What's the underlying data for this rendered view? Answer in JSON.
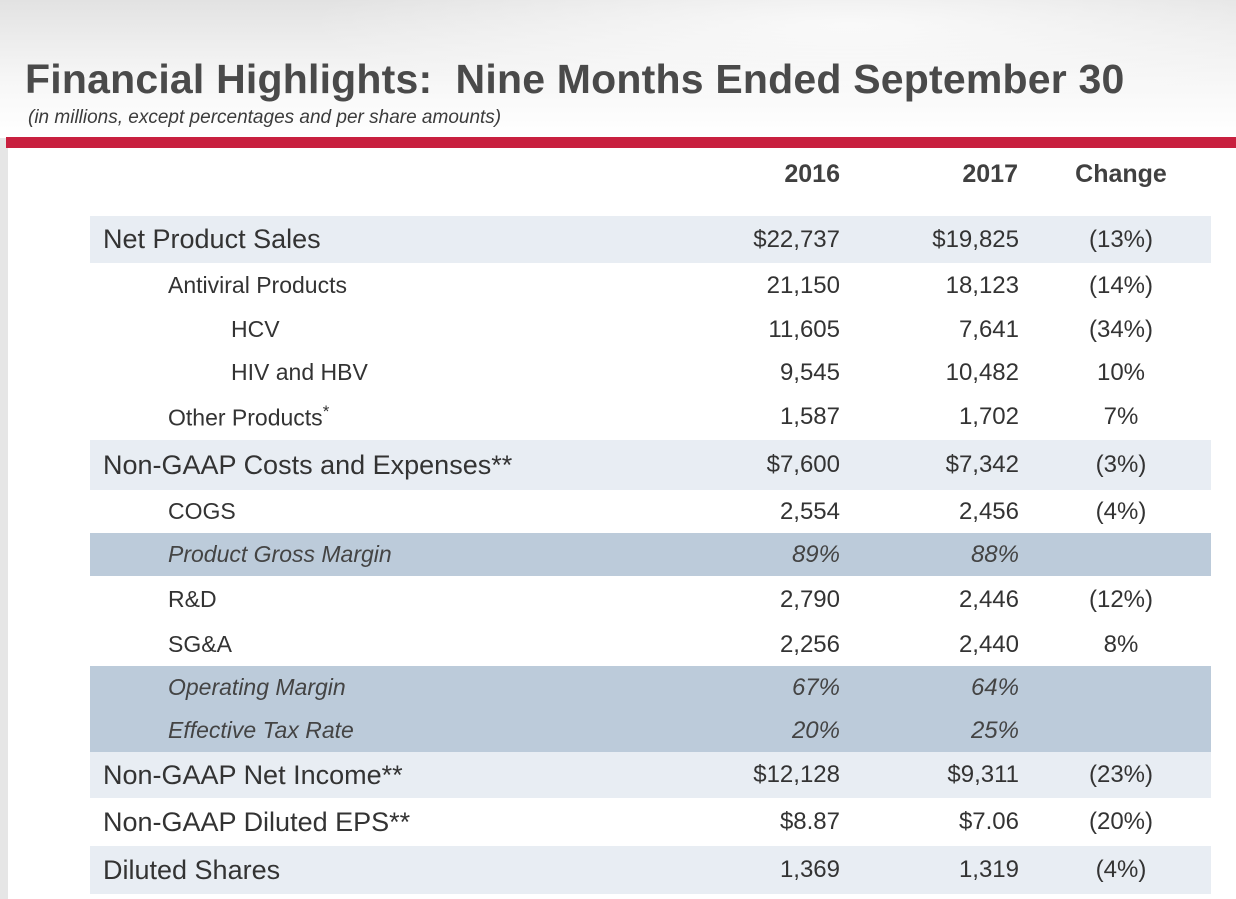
{
  "header": {
    "title": "Financial Highlights:  Nine Months Ended September 30",
    "subtitle": "(in millions, except percentages and per share amounts)"
  },
  "columns": [
    "2016",
    "2017",
    "Change"
  ],
  "rows": [
    {
      "label": "Net Product Sales",
      "v2016": "$22,737",
      "v2017": "$19,825",
      "change": "(13%)"
    },
    {
      "label": "Antiviral Products",
      "v2016": "21,150",
      "v2017": "18,123",
      "change": "(14%)"
    },
    {
      "label": "HCV",
      "v2016": "11,605",
      "v2017": "7,641",
      "change": "(34%)"
    },
    {
      "label": "HIV and HBV",
      "v2016": "9,545",
      "v2017": "10,482",
      "change": "10%"
    },
    {
      "label": "Other Products",
      "label_mark": "*",
      "v2016": "1,587",
      "v2017": "1,702",
      "change": "7%"
    },
    {
      "label": "Non-GAAP Costs and Expenses**",
      "v2016": "$7,600",
      "v2017": "$7,342",
      "change": "(3%)"
    },
    {
      "label": "COGS",
      "v2016": "2,554",
      "v2017": "2,456",
      "change": "(4%)"
    },
    {
      "label": "Product Gross Margin",
      "v2016": "89%",
      "v2017": "88%",
      "change": ""
    },
    {
      "label": "R&D",
      "v2016": "2,790",
      "v2017": "2,446",
      "change": "(12%)"
    },
    {
      "label": "SG&A",
      "v2016": "2,256",
      "v2017": "2,440",
      "change": "8%"
    },
    {
      "label": "Operating Margin",
      "v2016": "67%",
      "v2017": "64%",
      "change": ""
    },
    {
      "label": "Effective Tax Rate",
      "v2016": "20%",
      "v2017": "25%",
      "change": ""
    },
    {
      "label": "Non-GAAP Net Income**",
      "v2016": "$12,128",
      "v2017": "$9,311",
      "change": "(23%)"
    },
    {
      "label": "Non-GAAP Diluted EPS**",
      "v2016": "$8.87",
      "v2017": "$7.06",
      "change": "(20%)"
    },
    {
      "label": "Diluted Shares",
      "v2016": "1,369",
      "v2017": "1,319",
      "change": "(4%)"
    }
  ],
  "colors": {
    "accent_rule": "#c8203f",
    "row_shade_light": "#e8edf3",
    "row_shade_dark": "#bccbda"
  }
}
